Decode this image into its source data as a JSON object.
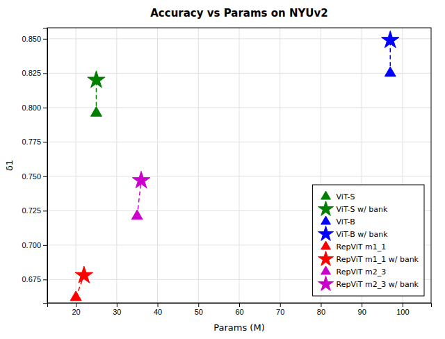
{
  "chart_data": {
    "type": "scatter",
    "title": "Accuracy vs Params on NYUv2",
    "xlabel": "Params (M)",
    "ylabel": "δ1",
    "xlim": [
      13,
      107
    ],
    "ylim": [
      0.658,
      0.858
    ],
    "xticks": [
      20,
      30,
      40,
      50,
      60,
      70,
      80,
      90,
      100
    ],
    "yticks": [
      0.675,
      {
        "value": 0.7,
        "label": "0.700"
      },
      0.725,
      {
        "value": 0.75,
        "label": "0.750"
      },
      0.775,
      {
        "value": 0.8,
        "label": "0.800"
      },
      0.825,
      {
        "value": 0.85,
        "label": "0.850"
      }
    ],
    "grid": true,
    "legend": "lower right",
    "series": [
      {
        "name": "ViT-S",
        "color": "#008000",
        "marker": "triangle",
        "x": [
          25
        ],
        "values": [
          0.796
        ]
      },
      {
        "name": "ViT-S w/ bank",
        "color": "#008000",
        "marker": "star",
        "x": [
          25
        ],
        "values": [
          0.82
        ]
      },
      {
        "name": "ViT-B",
        "color": "#0000FF",
        "marker": "triangle",
        "x": [
          97
        ],
        "values": [
          0.825
        ]
      },
      {
        "name": "ViT-B w/ bank",
        "color": "#0000FF",
        "marker": "star",
        "x": [
          97
        ],
        "values": [
          0.849
        ]
      },
      {
        "name": "RepViT m1_1",
        "color": "#FF0000",
        "marker": "triangle",
        "x": [
          20
        ],
        "values": [
          0.662
        ]
      },
      {
        "name": "RepViT m1_1 w/ bank",
        "color": "#FF0000",
        "marker": "star",
        "x": [
          22
        ],
        "values": [
          0.678
        ]
      },
      {
        "name": "RepViT m2_3",
        "color": "#CC00CC",
        "marker": "triangle",
        "x": [
          35
        ],
        "values": [
          0.721
        ]
      },
      {
        "name": "RepViT m2_3 w/ bank",
        "color": "#CC00CC",
        "marker": "star",
        "x": [
          36
        ],
        "values": [
          0.747
        ]
      }
    ],
    "connectors": [
      {
        "from": "ViT-S",
        "to": "ViT-S w/ bank",
        "color": "#008000",
        "line_style": "dashed"
      },
      {
        "from": "ViT-B",
        "to": "ViT-B w/ bank",
        "color": "#0000FF",
        "line_style": "dashed"
      },
      {
        "from": "RepViT m1_1",
        "to": "RepViT m1_1 w/ bank",
        "color": "#FF0000",
        "line_style": "dashed"
      },
      {
        "from": "RepViT m2_3",
        "to": "RepViT m2_3 w/ bank",
        "color": "#CC00CC",
        "line_style": "dashed"
      }
    ]
  }
}
